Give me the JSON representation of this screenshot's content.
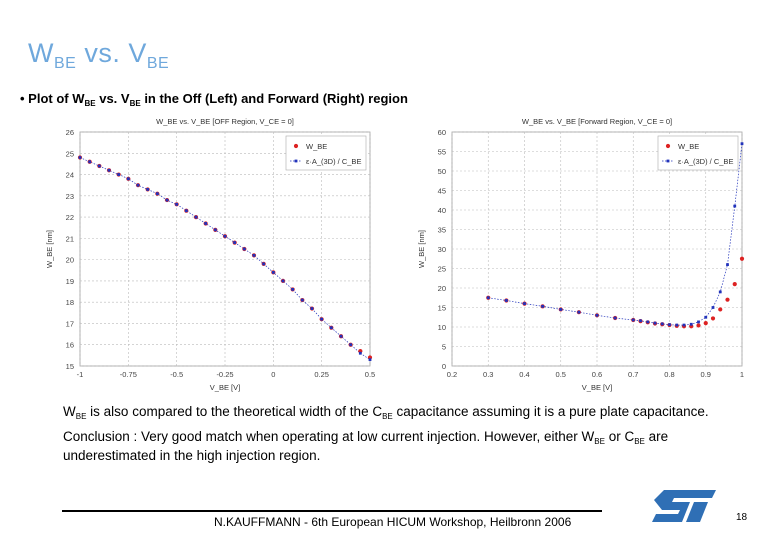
{
  "slide": {
    "title_main_1": "W",
    "title_sub_1": "BE",
    "title_mid": " vs. V",
    "title_sub_2": "BE",
    "bullet_prefix": "• Plot of  W",
    "bullet_sub_1": "BE",
    "bullet_mid": " vs.  V",
    "bullet_sub_2": "BE",
    "bullet_suffix": "  in the Off (Left) and Forward (Right) region",
    "text1_a": "W",
    "text1_sub_a": "BE",
    "text1_b": " is also compared to the theoretical width of the C",
    "text1_sub_b": "BE",
    "text1_c": " capacitance assuming it is a pure plate capacitance.",
    "text2_a": "Conclusion : Very good match when operating at low current injection. However, either W",
    "text2_sub_a": "BE",
    "text2_b": " or C",
    "text2_sub_b": "BE",
    "text2_c": " are underestimated in the high injection region.",
    "footer": "N.KAUFFMANN - 6th European HICUM Workshop, Heilbronn 2006",
    "page_number": "18",
    "logo_text": "ST",
    "colors": {
      "title": "#6fa8dc",
      "series_red": "#dd2222",
      "series_blue": "#2233bb",
      "logo": "#2f6fb5"
    }
  },
  "chart_data": [
    {
      "type": "scatter",
      "title": "W_BE vs. V_BE [OFF Region, V_CE = 0]",
      "xlabel": "V_BE [V]",
      "ylabel": "W_BE [nm]",
      "xlim": [
        -1,
        0.5
      ],
      "ylim": [
        15,
        26
      ],
      "xticks": [
        -1,
        -0.75,
        -0.5,
        -0.25,
        0,
        0.25,
        0.5
      ],
      "xtick_labels": [
        "-1",
        "-0.75",
        "-0.5",
        "-0.25",
        "0",
        "0.25",
        "0.5"
      ],
      "yticks": [
        15,
        16,
        17,
        18,
        19,
        20,
        21,
        22,
        23,
        24,
        25,
        26
      ],
      "ytick_labels": [
        "15",
        "16",
        "17",
        "18",
        "19",
        "20",
        "21",
        "22",
        "23",
        "24",
        "25",
        "26"
      ],
      "legend": [
        "W_BE",
        "ε·A_(3D) / C_BE"
      ],
      "legend_position": "top-right",
      "series": [
        {
          "name": "W_BE",
          "x": [
            -1.0,
            -0.95,
            -0.9,
            -0.85,
            -0.8,
            -0.75,
            -0.7,
            -0.65,
            -0.6,
            -0.55,
            -0.5,
            -0.45,
            -0.4,
            -0.35,
            -0.3,
            -0.25,
            -0.2,
            -0.15,
            -0.1,
            -0.05,
            0.0,
            0.05,
            0.1,
            0.15,
            0.2,
            0.25,
            0.3,
            0.35,
            0.4,
            0.45,
            0.5
          ],
          "y": [
            24.8,
            24.6,
            24.4,
            24.2,
            24.0,
            23.8,
            23.5,
            23.3,
            23.1,
            22.8,
            22.6,
            22.3,
            22.0,
            21.7,
            21.4,
            21.1,
            20.8,
            20.5,
            20.2,
            19.8,
            19.4,
            19.0,
            18.6,
            18.1,
            17.7,
            17.2,
            16.8,
            16.4,
            16.0,
            15.7,
            15.4
          ]
        },
        {
          "name": "ε·A_(3D) / C_BE",
          "x": [
            -1.0,
            -0.95,
            -0.9,
            -0.85,
            -0.8,
            -0.75,
            -0.7,
            -0.65,
            -0.6,
            -0.55,
            -0.5,
            -0.45,
            -0.4,
            -0.35,
            -0.3,
            -0.25,
            -0.2,
            -0.15,
            -0.1,
            -0.05,
            0.0,
            0.05,
            0.1,
            0.15,
            0.2,
            0.25,
            0.3,
            0.35,
            0.4,
            0.45,
            0.5
          ],
          "y": [
            24.8,
            24.6,
            24.4,
            24.2,
            24.0,
            23.8,
            23.5,
            23.3,
            23.1,
            22.8,
            22.6,
            22.3,
            22.0,
            21.7,
            21.4,
            21.1,
            20.8,
            20.5,
            20.2,
            19.8,
            19.4,
            19.0,
            18.6,
            18.1,
            17.7,
            17.2,
            16.8,
            16.4,
            16.0,
            15.6,
            15.3
          ]
        }
      ]
    },
    {
      "type": "scatter",
      "title": "W_BE vs. V_BE [Forward Region, V_CE = 0]",
      "xlabel": "V_BE [V]",
      "ylabel": "W_BE [nm]",
      "xlim": [
        0.2,
        1
      ],
      "ylim": [
        0,
        60
      ],
      "xticks": [
        0.2,
        0.3,
        0.4,
        0.5,
        0.6,
        0.7,
        0.8,
        0.9,
        1
      ],
      "xtick_labels": [
        "0.2",
        "0.3",
        "0.4",
        "0.5",
        "0.6",
        "0.7",
        "0.8",
        "0.9",
        "1"
      ],
      "yticks": [
        0,
        5,
        10,
        15,
        20,
        25,
        30,
        35,
        40,
        45,
        50,
        55,
        60
      ],
      "ytick_labels": [
        "0",
        "5",
        "10",
        "15",
        "20",
        "25",
        "30",
        "35",
        "40",
        "45",
        "50",
        "55",
        "60"
      ],
      "legend": [
        "W_BE",
        "ε·A_(3D) / C_BE"
      ],
      "legend_position": "top-right",
      "series": [
        {
          "name": "W_BE",
          "x": [
            0.3,
            0.35,
            0.4,
            0.45,
            0.5,
            0.55,
            0.6,
            0.65,
            0.7,
            0.72,
            0.74,
            0.76,
            0.78,
            0.8,
            0.82,
            0.84,
            0.86,
            0.88,
            0.9,
            0.92,
            0.94,
            0.96,
            0.98,
            1.0
          ],
          "y": [
            17.5,
            16.8,
            16.0,
            15.3,
            14.5,
            13.8,
            13.0,
            12.3,
            11.8,
            11.5,
            11.2,
            10.9,
            10.7,
            10.5,
            10.3,
            10.2,
            10.2,
            10.4,
            11.0,
            12.2,
            14.5,
            17.0,
            21.0,
            27.5
          ]
        },
        {
          "name": "ε·A_(3D) / C_BE",
          "x": [
            0.3,
            0.35,
            0.4,
            0.45,
            0.5,
            0.55,
            0.6,
            0.65,
            0.7,
            0.72,
            0.74,
            0.76,
            0.78,
            0.8,
            0.82,
            0.84,
            0.86,
            0.88,
            0.9,
            0.92,
            0.94,
            0.96,
            0.98,
            1.0
          ],
          "y": [
            17.5,
            16.8,
            16.0,
            15.3,
            14.5,
            13.8,
            13.0,
            12.3,
            11.8,
            11.6,
            11.3,
            11.0,
            10.8,
            10.6,
            10.5,
            10.5,
            10.7,
            11.3,
            12.5,
            15.0,
            19.0,
            26.0,
            41.0,
            57.0
          ]
        }
      ]
    }
  ]
}
